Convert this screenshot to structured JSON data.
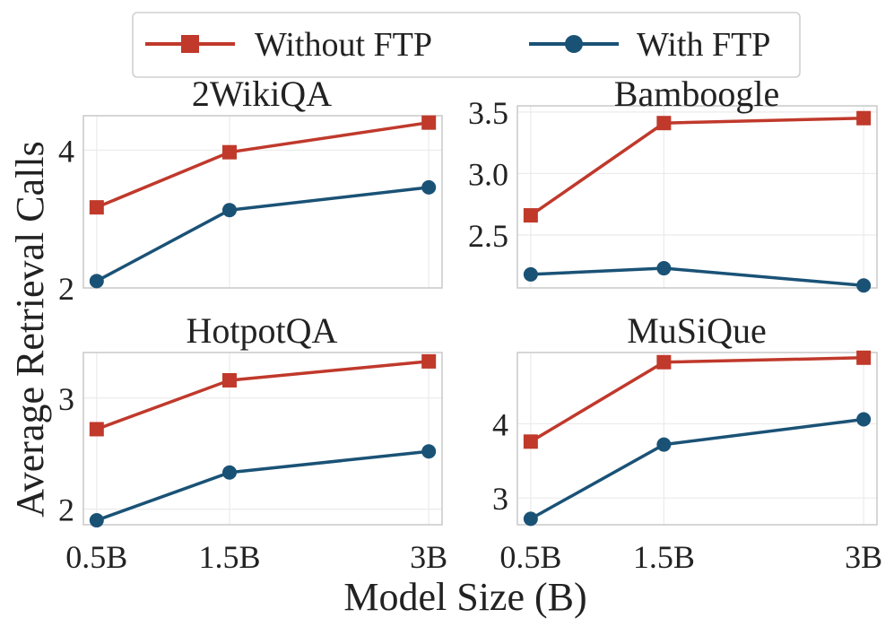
{
  "chart_data": {
    "type": "line",
    "xlabel": "Model Size (B)",
    "ylabel": "Average Retrieval Calls",
    "categories": [
      "0.5B",
      "1.5B",
      "3B"
    ],
    "x": [
      0.5,
      1.5,
      3
    ],
    "legend": {
      "placement": "top-center",
      "entries": [
        {
          "name": "Without FTP",
          "color": "#c0392b",
          "marker": "square"
        },
        {
          "name": "With FTP",
          "color": "#1a5276",
          "marker": "circle"
        }
      ]
    },
    "panels": [
      {
        "title": "2WikiQA",
        "ylim": [
          2.0,
          4.5
        ],
        "yticks": [
          2,
          4
        ],
        "ytick_labels": [
          "2",
          "4"
        ],
        "series": [
          {
            "name": "Without FTP",
            "values": [
              3.17,
              3.97,
              4.4
            ]
          },
          {
            "name": "With FTP",
            "values": [
              2.1,
              3.13,
              3.46
            ]
          }
        ]
      },
      {
        "title": "Bamboogle",
        "ylim": [
          2.07,
          3.55
        ],
        "yticks": [
          2.5,
          3.0,
          3.5
        ],
        "ytick_labels": [
          "2.5",
          "3.0",
          "3.5"
        ],
        "series": [
          {
            "name": "Without FTP",
            "values": [
              2.66,
              3.41,
              3.45
            ]
          },
          {
            "name": "With FTP",
            "values": [
              2.18,
              2.23,
              2.09
            ]
          }
        ]
      },
      {
        "title": "HotpotQA",
        "ylim": [
          1.86,
          3.41
        ],
        "yticks": [
          2,
          3
        ],
        "ytick_labels": [
          "2",
          "3"
        ],
        "series": [
          {
            "name": "Without FTP",
            "values": [
              2.72,
              3.16,
              3.33
            ]
          },
          {
            "name": "With FTP",
            "values": [
              1.9,
              2.33,
              2.52
            ]
          }
        ]
      },
      {
        "title": "MuSiQue",
        "ylim": [
          2.64,
          4.96
        ],
        "yticks": [
          3,
          4
        ],
        "ytick_labels": [
          "3",
          "4"
        ],
        "series": [
          {
            "name": "Without FTP",
            "values": [
              3.76,
              4.83,
              4.89
            ]
          },
          {
            "name": "With FTP",
            "values": [
              2.72,
              3.72,
              4.06
            ]
          }
        ]
      }
    ]
  }
}
